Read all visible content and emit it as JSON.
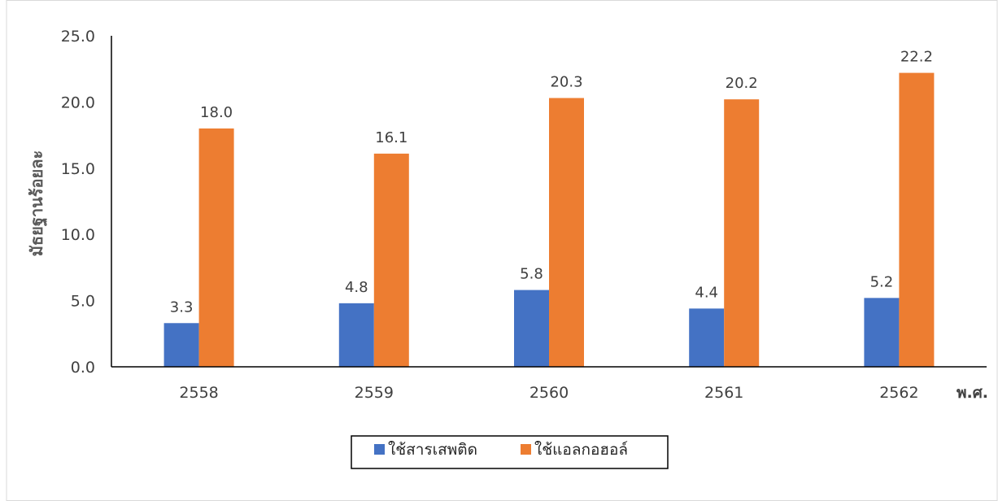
{
  "chart_data": {
    "type": "bar",
    "categories": [
      "2558",
      "2559",
      "2560",
      "2561",
      "2562"
    ],
    "series": [
      {
        "name": "ใช้สารเสพติด",
        "values": [
          3.3,
          4.8,
          5.8,
          4.4,
          5.2
        ],
        "color": "#4472c4"
      },
      {
        "name": "ใช้แอลกอฮอล์",
        "values": [
          18.0,
          16.1,
          20.3,
          20.2,
          22.2
        ],
        "color": "#ed7d31"
      }
    ],
    "ylabel": "มัธยฐานร้อยละ",
    "xlabel": "พ.ศ.",
    "ylim": [
      0,
      25
    ],
    "yticks": [
      "0.0",
      "5.0",
      "10.0",
      "15.0",
      "20.0",
      "25.0"
    ],
    "data_labels": [
      [
        "3.3",
        "4.8",
        "5.8",
        "4.4",
        "5.2"
      ],
      [
        "18.0",
        "16.1",
        "20.3",
        "20.2",
        "22.2"
      ]
    ],
    "grid": false,
    "legend_position": "bottom"
  }
}
